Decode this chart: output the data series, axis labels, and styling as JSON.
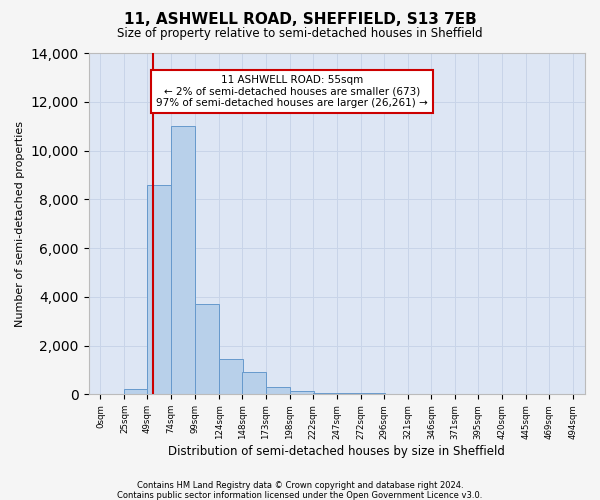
{
  "title": "11, ASHWELL ROAD, SHEFFIELD, S13 7EB",
  "subtitle": "Size of property relative to semi-detached houses in Sheffield",
  "xlabel": "Distribution of semi-detached houses by size in Sheffield",
  "ylabel": "Number of semi-detached properties",
  "footnote1": "Contains HM Land Registry data © Crown copyright and database right 2024.",
  "footnote2": "Contains public sector information licensed under the Open Government Licence v3.0.",
  "annotation_title": "11 ASHWELL ROAD: 55sqm",
  "annotation_line2": "← 2% of semi-detached houses are smaller (673)",
  "annotation_line3": "97% of semi-detached houses are larger (26,261) →",
  "property_size": 55,
  "bar_edges": [
    0,
    25,
    49,
    74,
    99,
    124,
    148,
    173,
    198,
    222,
    247,
    272,
    296,
    321,
    346,
    371,
    395,
    420,
    445,
    469,
    494
  ],
  "bar_heights": [
    0,
    200,
    8600,
    11000,
    3700,
    1450,
    900,
    300,
    120,
    60,
    60,
    40,
    0,
    0,
    0,
    0,
    0,
    0,
    0,
    0
  ],
  "bar_color": "#b8d0ea",
  "bar_edge_color": "#6699cc",
  "vline_color": "#cc0000",
  "annotation_box_color": "#cc0000",
  "annotation_bg": "#ffffff",
  "ylim": [
    0,
    14000
  ],
  "yticks": [
    0,
    2000,
    4000,
    6000,
    8000,
    10000,
    12000,
    14000
  ],
  "tick_labels": [
    "0sqm",
    "25sqm",
    "49sqm",
    "74sqm",
    "99sqm",
    "124sqm",
    "148sqm",
    "173sqm",
    "198sqm",
    "222sqm",
    "247sqm",
    "272sqm",
    "296sqm",
    "321sqm",
    "346sqm",
    "371sqm",
    "395sqm",
    "420sqm",
    "445sqm",
    "469sqm",
    "494sqm"
  ],
  "grid_color": "#c8d4e8",
  "axes_bg": "#dde6f4",
  "fig_bg": "#f5f5f5"
}
